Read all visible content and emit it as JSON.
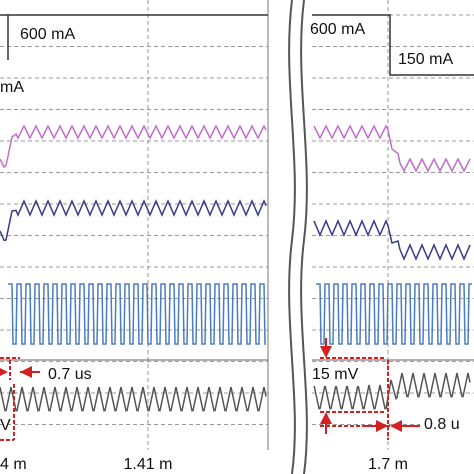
{
  "left": {
    "current_label": "600 mA",
    "current_label_cut": "mA",
    "time_label": "0.7 us",
    "voltage_label_cut": "V",
    "time_ticks": [
      "4 m",
      "1.41 m"
    ]
  },
  "right": {
    "current_label_high": "600 mA",
    "current_label_low": "150 mA",
    "voltage_label": "15 mV",
    "time_label": "0.8 u",
    "time_ticks": [
      "1.7 m"
    ]
  }
}
